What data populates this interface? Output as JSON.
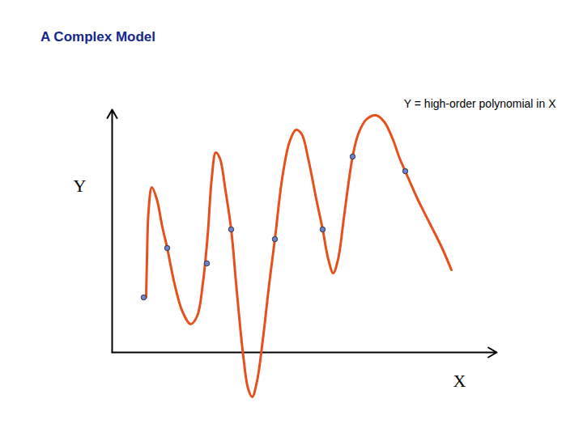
{
  "chart_data": {
    "type": "scatter",
    "title": "A Complex Model",
    "annotation": "Y = high-order polynomial in X",
    "x_label": "X",
    "y_label": "Y",
    "x": [
      39,
      68,
      117,
      147,
      201,
      260,
      297,
      362
    ],
    "values": [
      68,
      129,
      110,
      152,
      140,
      152,
      242,
      224
    ],
    "color": "#6f82d2",
    "curve": {
      "type": "line",
      "color": "#e5501c",
      "x": [
        42,
        43,
        45,
        49,
        55,
        62,
        68,
        77,
        87,
        97,
        105,
        112,
        118,
        123,
        128,
        133,
        140,
        147,
        154,
        162,
        168,
        173,
        179,
        186,
        194,
        201,
        210,
        219,
        227,
        234,
        242,
        252,
        260,
        267,
        273,
        279,
        286,
        292,
        297,
        304,
        314,
        326,
        336,
        346,
        355,
        362,
        377,
        392,
        407,
        419
      ],
      "values": [
        68,
        115,
        175,
        204,
        190,
        155,
        129,
        85,
        50,
        35,
        45,
        85,
        145,
        215,
        247,
        240,
        200,
        152,
        75,
        -5,
        -45,
        -55,
        -35,
        15,
        85,
        140,
        215,
        260,
        275,
        270,
        240,
        190,
        152,
        115,
        98,
        115,
        165,
        210,
        242,
        270,
        288,
        293,
        285,
        265,
        240,
        224,
        190,
        160,
        130,
        102
      ]
    },
    "xlim": [
      0,
      475
    ],
    "ylim": [
      -60,
      300
    ],
    "xticks": [],
    "yticks": [],
    "tick_labels": false
  }
}
